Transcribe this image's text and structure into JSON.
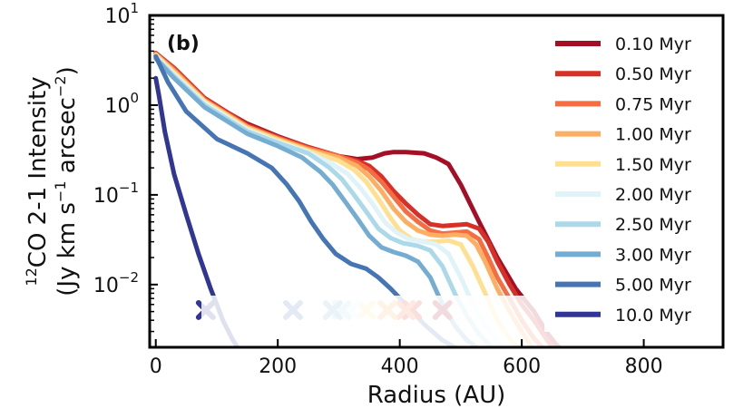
{
  "chart_data": {
    "type": "line",
    "panel_label": "(b)",
    "xlabel": "Radius (AU)",
    "ylabel_line1": "CO 2-1 Intensity",
    "ylabel_isotope": "12",
    "ylabel_line2_prefix": "(Jy km s",
    "ylabel_exp1": "−1",
    "ylabel_line2_mid": " arcsec",
    "ylabel_exp2": "−2",
    "ylabel_line2_suffix": ")",
    "xlim": [
      -10,
      930
    ],
    "ylim": [
      0.002,
      10
    ],
    "yscale": "log",
    "x_ticks": [
      0,
      200,
      400,
      600,
      800
    ],
    "x_tick_labels": [
      "0",
      "200",
      "400",
      "600",
      "800"
    ],
    "y_ticks": [
      {
        "value": 0.01,
        "base": "10",
        "exp": "−2"
      },
      {
        "value": 0.1,
        "base": "10",
        "exp": "−1"
      },
      {
        "value": 1,
        "base": "10",
        "exp": "0"
      },
      {
        "value": 10,
        "base": "10",
        "exp": "1"
      }
    ],
    "legend_position": "top-right",
    "series": [
      {
        "name": "0.10 Myr",
        "color": "#a50f26",
        "marker_x": 470,
        "x": [
          0,
          30,
          80,
          150,
          200,
          250,
          300,
          330,
          355,
          375,
          390,
          410,
          440,
          460,
          470,
          480,
          500,
          530,
          560,
          590,
          620,
          640,
          655,
          665,
          670
        ],
        "y": [
          3.8,
          2.5,
          1.15,
          0.62,
          0.45,
          0.34,
          0.27,
          0.25,
          0.26,
          0.29,
          0.3,
          0.3,
          0.29,
          0.26,
          0.24,
          0.22,
          0.13,
          0.05,
          0.02,
          0.009,
          0.005,
          0.003,
          0.0022,
          0.0019,
          0.0018
        ]
      },
      {
        "name": "0.50 Myr",
        "color": "#d73027",
        "marker_x": 420,
        "x": [
          0,
          30,
          80,
          150,
          200,
          250,
          300,
          330,
          350,
          370,
          390,
          410,
          430,
          450,
          470,
          490,
          510,
          530,
          545,
          560,
          580,
          600,
          620,
          640,
          655
        ],
        "y": [
          3.8,
          2.6,
          1.2,
          0.6,
          0.44,
          0.34,
          0.27,
          0.24,
          0.21,
          0.16,
          0.11,
          0.08,
          0.06,
          0.047,
          0.045,
          0.046,
          0.047,
          0.042,
          0.03,
          0.018,
          0.01,
          0.006,
          0.004,
          0.0025,
          0.0018
        ]
      },
      {
        "name": "0.75 Myr",
        "color": "#f46d43",
        "marker_x": 410,
        "x": [
          0,
          30,
          80,
          150,
          200,
          250,
          300,
          330,
          350,
          370,
          390,
          410,
          430,
          450,
          470,
          490,
          510,
          530,
          545,
          560,
          580,
          600,
          620,
          640
        ],
        "y": [
          3.7,
          2.5,
          1.15,
          0.58,
          0.43,
          0.33,
          0.27,
          0.23,
          0.19,
          0.14,
          0.095,
          0.065,
          0.05,
          0.04,
          0.037,
          0.038,
          0.039,
          0.032,
          0.02,
          0.012,
          0.007,
          0.004,
          0.0025,
          0.0018
        ]
      },
      {
        "name": "1.00 Myr",
        "color": "#fdae61",
        "marker_x": 380,
        "x": [
          0,
          30,
          80,
          150,
          200,
          250,
          300,
          330,
          350,
          370,
          390,
          410,
          430,
          450,
          470,
          490,
          510,
          525,
          540,
          560,
          580,
          600,
          620
        ],
        "y": [
          3.7,
          2.4,
          1.12,
          0.57,
          0.42,
          0.32,
          0.26,
          0.21,
          0.16,
          0.11,
          0.07,
          0.05,
          0.04,
          0.036,
          0.035,
          0.036,
          0.035,
          0.028,
          0.018,
          0.009,
          0.005,
          0.003,
          0.0018
        ]
      },
      {
        "name": "1.50 Myr",
        "color": "#fee090",
        "marker_x": 345,
        "x": [
          0,
          30,
          80,
          150,
          200,
          250,
          300,
          325,
          345,
          365,
          385,
          400,
          420,
          440,
          460,
          480,
          500,
          520,
          540,
          560,
          580,
          600
        ],
        "y": [
          3.6,
          2.3,
          1.1,
          0.55,
          0.41,
          0.31,
          0.24,
          0.19,
          0.14,
          0.09,
          0.055,
          0.04,
          0.032,
          0.03,
          0.03,
          0.031,
          0.028,
          0.016,
          0.008,
          0.004,
          0.0025,
          0.0018
        ]
      },
      {
        "name": "2.00 Myr",
        "color": "#e0f3f8",
        "marker_x": 320,
        "x": [
          0,
          30,
          80,
          150,
          200,
          250,
          290,
          315,
          335,
          355,
          375,
          395,
          415,
          440,
          460,
          480,
          500,
          520,
          540,
          560,
          580
        ],
        "y": [
          3.5,
          2.2,
          1.05,
          0.53,
          0.39,
          0.3,
          0.22,
          0.17,
          0.12,
          0.08,
          0.05,
          0.038,
          0.032,
          0.03,
          0.028,
          0.022,
          0.012,
          0.006,
          0.0035,
          0.0023,
          0.0018
        ]
      },
      {
        "name": "2.50 Myr",
        "color": "#abd9e9",
        "marker_x": 305,
        "x": [
          0,
          30,
          80,
          150,
          200,
          250,
          285,
          305,
          325,
          345,
          365,
          385,
          405,
          430,
          450,
          470,
          490,
          510,
          530,
          550,
          565
        ],
        "y": [
          3.4,
          2.1,
          1.0,
          0.51,
          0.38,
          0.29,
          0.2,
          0.15,
          0.1,
          0.065,
          0.042,
          0.033,
          0.029,
          0.027,
          0.024,
          0.016,
          0.008,
          0.0045,
          0.0028,
          0.002,
          0.0018
        ]
      },
      {
        "name": "3.00 Myr",
        "color": "#74add1",
        "marker_x": 290,
        "x": [
          0,
          30,
          80,
          150,
          200,
          240,
          270,
          290,
          310,
          330,
          350,
          370,
          390,
          410,
          430,
          450,
          470,
          490,
          510,
          530,
          545
        ],
        "y": [
          3.3,
          2.0,
          0.95,
          0.48,
          0.35,
          0.26,
          0.18,
          0.13,
          0.085,
          0.055,
          0.035,
          0.026,
          0.023,
          0.021,
          0.018,
          0.012,
          0.006,
          0.0035,
          0.0024,
          0.0019,
          0.0018
        ]
      },
      {
        "name": "5.00 Myr",
        "color": "#4575b4",
        "marker_x": 225,
        "x": [
          0,
          20,
          50,
          100,
          150,
          190,
          215,
          235,
          255,
          275,
          295,
          320,
          345,
          365,
          385,
          410,
          440,
          470,
          490,
          505,
          515
        ],
        "y": [
          3.5,
          1.8,
          0.85,
          0.42,
          0.29,
          0.2,
          0.13,
          0.085,
          0.05,
          0.032,
          0.022,
          0.017,
          0.015,
          0.012,
          0.009,
          0.006,
          0.0036,
          0.0024,
          0.002,
          0.0018,
          0.0018
        ]
      },
      {
        "name": "10.0 Myr",
        "color": "#313695",
        "marker_x": 82,
        "x": [
          0,
          5,
          15,
          30,
          50,
          70,
          90,
          110,
          125,
          138
        ],
        "y": [
          2.0,
          1.3,
          0.5,
          0.17,
          0.06,
          0.022,
          0.009,
          0.004,
          0.0025,
          0.0018
        ]
      }
    ]
  }
}
